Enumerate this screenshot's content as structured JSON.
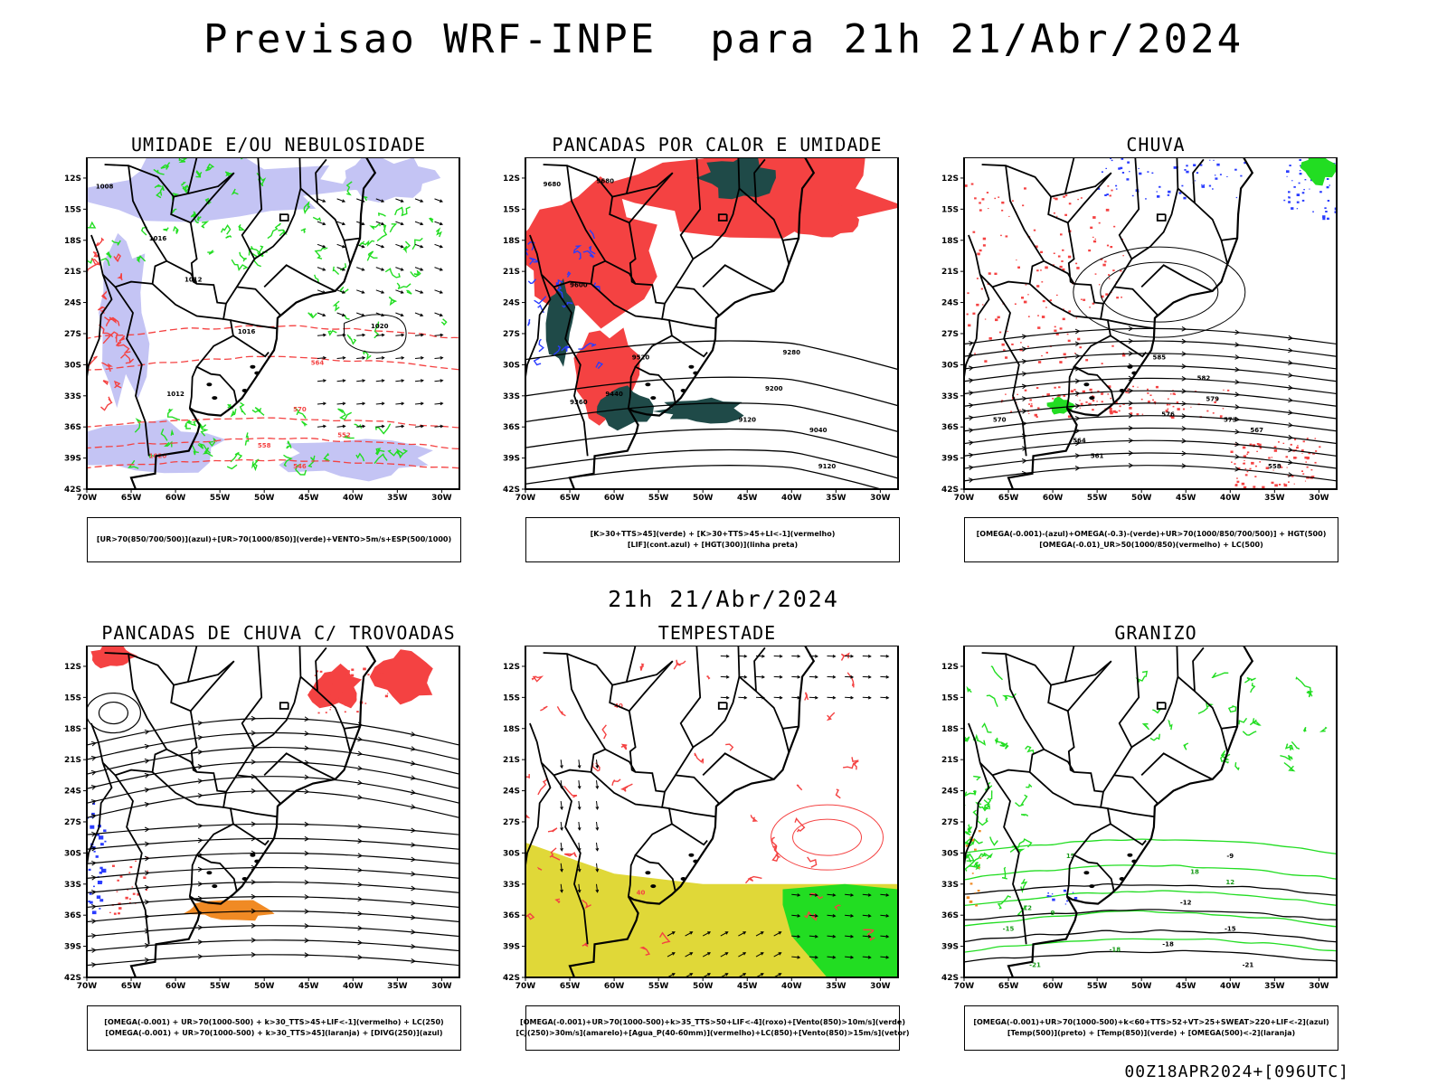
{
  "title": "Previsao WRF-INPE  para 21h 21/Abr/2024",
  "mid_title": "21h 21/Abr/2024",
  "footer": "00Z18APR2024+[096UTC]",
  "axes": {
    "lat_ticks": [
      "12S",
      "15S",
      "18S",
      "21S",
      "24S",
      "27S",
      "30S",
      "33S",
      "36S",
      "39S",
      "42S"
    ],
    "lon_ticks": [
      "70W",
      "65W",
      "60W",
      "55W",
      "50W",
      "45W",
      "40W",
      "35W",
      "30W"
    ],
    "lat_range": [
      -42,
      -10
    ],
    "lon_range": [
      -70,
      -28
    ]
  },
  "colors": {
    "red": "#f44242",
    "green": "#22dd22",
    "blue": "#2a3cff",
    "lavender": "#c4c4f4",
    "dark_teal": "#1f4a48",
    "yellow": "#e0d838",
    "orange": "#f08a24",
    "black": "#000000"
  },
  "panels": [
    {
      "title": "UMIDADE E/OU NEBULOSIDADE",
      "legend": [
        "[UR>70(850/700/500)](azul)+[UR>70(1000/850)](verde)+VENTO>5m/s+ESP(500/1000)"
      ],
      "contour_labels": [
        "1008",
        "1016",
        "1012",
        "1020",
        "1016",
        "1012",
        "1020",
        "570",
        "564",
        "558",
        "552",
        "546"
      ]
    },
    {
      "title": "PANCADAS POR CALOR E UMIDADE",
      "legend": [
        "[K>30+TTS>45](verde) + [K>30+TTS>45+LI<-1](vermelho)",
        "[LIF](cont.azul) + [HGT(300)](linha preta)"
      ],
      "contour_labels": [
        "9680",
        "9680",
        "9600",
        "9520",
        "9440",
        "9360",
        "9280",
        "9200",
        "9120",
        "9040",
        "9120"
      ]
    },
    {
      "title": "CHUVA",
      "legend": [
        "[OMEGA(-0.001)-(azul)+OMEGA(-0.3)-(verde)+UR>70(1000/850/700/500)] + HGT(500)",
        "[OMEGA(-0.01)_UR>50(1000/850)(vermelho) + LC(500)"
      ],
      "contour_labels": [
        "585",
        "582",
        "579",
        "576",
        "573",
        "570",
        "567",
        "564",
        "561",
        "558"
      ]
    },
    {
      "title": "PANCADAS DE CHUVA C/ TROVOADAS",
      "legend": [
        "[OMEGA(-0.001) + UR>70(1000-500) + k>30_TTS>45+LIF<-1](vermelho) + LC(250)",
        "[OMEGA(-0.001) + UR>70(1000-500) + k>30_TTS>45](laranja) + [DIVG(250)](azul)"
      ],
      "contour_labels": []
    },
    {
      "title": "TEMPESTADE",
      "legend": [
        "[OMEGA(-0.001)+UR>70(1000-500)+k>35_TTS>50+LIF<-4](roxo)+[Vento(850)>10m/s](verde)",
        "[CJ(250)>30m/s](amarelo)+[Agua_P(40-60mm)](vermelho)+LC(850)+[Vento(850)>15m/s](vetor)"
      ],
      "contour_labels": [
        "40",
        "40"
      ]
    },
    {
      "title": "GRANIZO",
      "legend": [
        "[OMEGA(-0.001)+UR>70(1000-500)+k<60+TTS>52+VT>25+SWEAT>220+LIF<-2](azul)",
        "[Temp(500)](preto) + [Temp(850)](verde) + [OMEGA(500)<-2](laranja)"
      ],
      "contour_labels": [
        "-9",
        "-12",
        "-15",
        "-18",
        "-21",
        "-12",
        "-15",
        "-18",
        "-21",
        "15",
        "18",
        "12",
        "9"
      ]
    }
  ]
}
